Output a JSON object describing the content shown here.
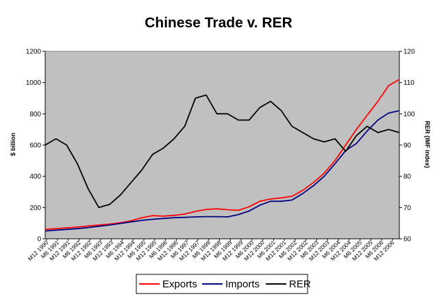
{
  "chart_data": {
    "type": "line",
    "title": "Chinese Trade v. RER",
    "ylabel": "$ billion",
    "y2label": "RER (IMF index)",
    "ylim": [
      0,
      1200
    ],
    "y2lim": [
      60,
      120
    ],
    "yticks": [
      "0",
      "200",
      "400",
      "600",
      "800",
      "1000",
      "1200"
    ],
    "y2ticks": [
      "60",
      "70",
      "80",
      "90",
      "100",
      "110",
      "120"
    ],
    "xticks": [
      "M12 1990",
      "M6 1991",
      "M12 1991",
      "M6 1992",
      "M12 1992",
      "M6 1993",
      "M12 1993",
      "M6 1994",
      "M12 1994",
      "M6 1995",
      "M12 1995",
      "M6 1996",
      "M12 1996",
      "M6 1997",
      "M12 1997",
      "M6 1998",
      "M12 1998",
      "M6 1999",
      "M12 1999",
      "M6 2000",
      "M12 2000",
      "M6 2001",
      "M12 2001",
      "M6 2002",
      "M12 2002",
      "M6 2003",
      "M12 2003",
      "M6 2004",
      "M12 2004",
      "M6 2005",
      "M12 2005",
      "M6 2006",
      "M12 2006"
    ],
    "grid": false,
    "legend": "bottom",
    "x": [
      0,
      1,
      2,
      3,
      4,
      5,
      6,
      7,
      8,
      9,
      10,
      11,
      12,
      13,
      14,
      15,
      16,
      17,
      18,
      19,
      20,
      21,
      22,
      23,
      24,
      25,
      26,
      27,
      28,
      29,
      30,
      31,
      32,
      33
    ],
    "series": [
      {
        "name": "Exports",
        "color": "#ff0000",
        "axis": "left",
        "values": [
          60,
          65,
          70,
          75,
          82,
          88,
          94,
          103,
          115,
          135,
          148,
          145,
          150,
          158,
          175,
          188,
          192,
          186,
          182,
          205,
          240,
          255,
          262,
          272,
          310,
          360,
          420,
          500,
          600,
          700,
          790,
          880,
          980,
          1020
        ]
      },
      {
        "name": "Imports",
        "color": "#000080",
        "axis": "left",
        "values": [
          50,
          55,
          60,
          65,
          72,
          80,
          88,
          98,
          108,
          118,
          125,
          130,
          135,
          137,
          140,
          142,
          142,
          140,
          155,
          178,
          215,
          240,
          240,
          248,
          290,
          340,
          400,
          480,
          565,
          610,
          690,
          760,
          805,
          820
        ]
      },
      {
        "name": "RER",
        "color": "#000000",
        "axis": "right",
        "values": [
          90,
          92,
          90,
          84,
          76,
          70,
          71,
          74,
          78,
          82,
          87,
          89,
          92,
          96,
          105,
          106,
          100,
          100,
          98,
          98,
          102,
          104,
          101,
          96,
          94,
          92,
          91,
          92,
          88,
          93,
          96,
          94,
          95,
          94
        ]
      }
    ]
  }
}
